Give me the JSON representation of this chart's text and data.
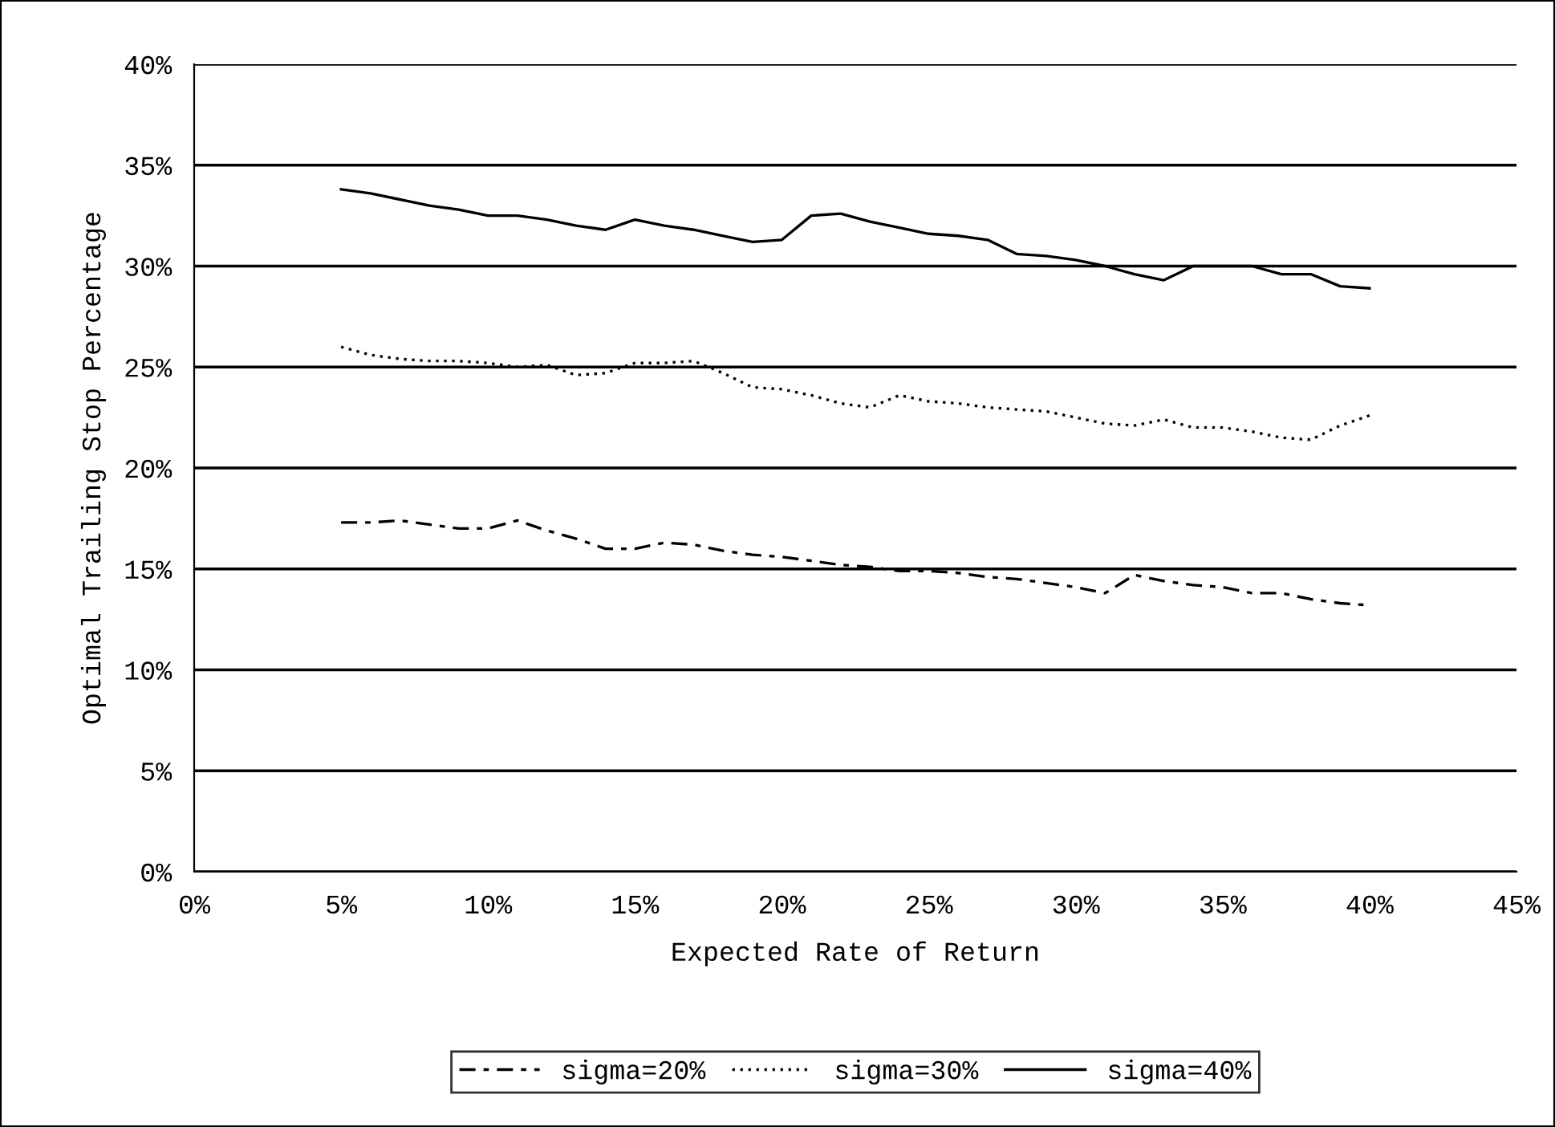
{
  "chart_data": {
    "type": "line",
    "xlabel": "Expected Rate of Return",
    "ylabel": "Optimal Trailing Stop Percentage",
    "x": [
      5,
      6,
      7,
      8,
      9,
      10,
      11,
      12,
      13,
      14,
      15,
      16,
      17,
      18,
      19,
      20,
      21,
      22,
      23,
      24,
      25,
      26,
      27,
      28,
      29,
      30,
      31,
      32,
      33,
      34,
      35,
      36,
      37,
      38,
      39,
      40
    ],
    "series": [
      {
        "name": "sigma=20%",
        "color": "#000000",
        "line_style": "dashed",
        "values": [
          17.3,
          17.3,
          17.4,
          17.2,
          17.0,
          17.0,
          17.4,
          16.9,
          16.5,
          16.0,
          16.0,
          16.3,
          16.2,
          15.9,
          15.7,
          15.6,
          15.4,
          15.2,
          15.1,
          14.9,
          14.9,
          14.8,
          14.6,
          14.5,
          14.3,
          14.1,
          13.8,
          14.7,
          14.4,
          14.2,
          14.1,
          13.8,
          13.8,
          13.5,
          13.3,
          13.2
        ]
      },
      {
        "name": "sigma=30%",
        "color": "#000000",
        "line_style": "dotted",
        "values": [
          26.0,
          25.6,
          25.4,
          25.3,
          25.3,
          25.2,
          25.0,
          25.1,
          24.6,
          24.7,
          25.2,
          25.2,
          25.3,
          24.7,
          24.0,
          23.9,
          23.6,
          23.2,
          23.0,
          23.6,
          23.3,
          23.2,
          23.0,
          22.9,
          22.8,
          22.5,
          22.2,
          22.1,
          22.4,
          22.0,
          22.0,
          21.8,
          21.5,
          21.4,
          22.1,
          22.6
        ]
      },
      {
        "name": "sigma=40%",
        "color": "#000000",
        "line_style": "solid",
        "values": [
          33.8,
          33.6,
          33.3,
          33.0,
          32.8,
          32.5,
          32.5,
          32.3,
          32.0,
          31.8,
          32.3,
          32.0,
          31.8,
          31.5,
          31.2,
          31.3,
          32.5,
          32.6,
          32.2,
          31.9,
          31.6,
          31.5,
          31.3,
          30.6,
          30.5,
          30.3,
          30.0,
          29.6,
          29.3,
          30.0,
          30.0,
          30.0,
          29.6,
          29.6,
          29.0,
          28.9
        ]
      }
    ],
    "xlim": [
      0,
      45
    ],
    "xticks": [
      {
        "value": 0,
        "label": "0%"
      },
      {
        "value": 5,
        "label": "5%"
      },
      {
        "value": 10,
        "label": "10%"
      },
      {
        "value": 15,
        "label": "15%"
      },
      {
        "value": 20,
        "label": "20%"
      },
      {
        "value": 25,
        "label": "25%"
      },
      {
        "value": 30,
        "label": "30%"
      },
      {
        "value": 35,
        "label": "35%"
      },
      {
        "value": 40,
        "label": "40%"
      },
      {
        "value": 45,
        "label": "45%"
      }
    ],
    "ylim": [
      0,
      40
    ],
    "yticks": [
      {
        "value": 0,
        "label": "0%"
      },
      {
        "value": 5,
        "label": "5%"
      },
      {
        "value": 10,
        "label": "10%"
      },
      {
        "value": 15,
        "label": "15%"
      },
      {
        "value": 20,
        "label": "20%"
      },
      {
        "value": 25,
        "label": "25%"
      },
      {
        "value": 30,
        "label": "30%"
      },
      {
        "value": 35,
        "label": "35%"
      },
      {
        "value": 40,
        "label": "40%"
      }
    ],
    "grid": "y",
    "legend": "bottom",
    "marker": "none"
  }
}
